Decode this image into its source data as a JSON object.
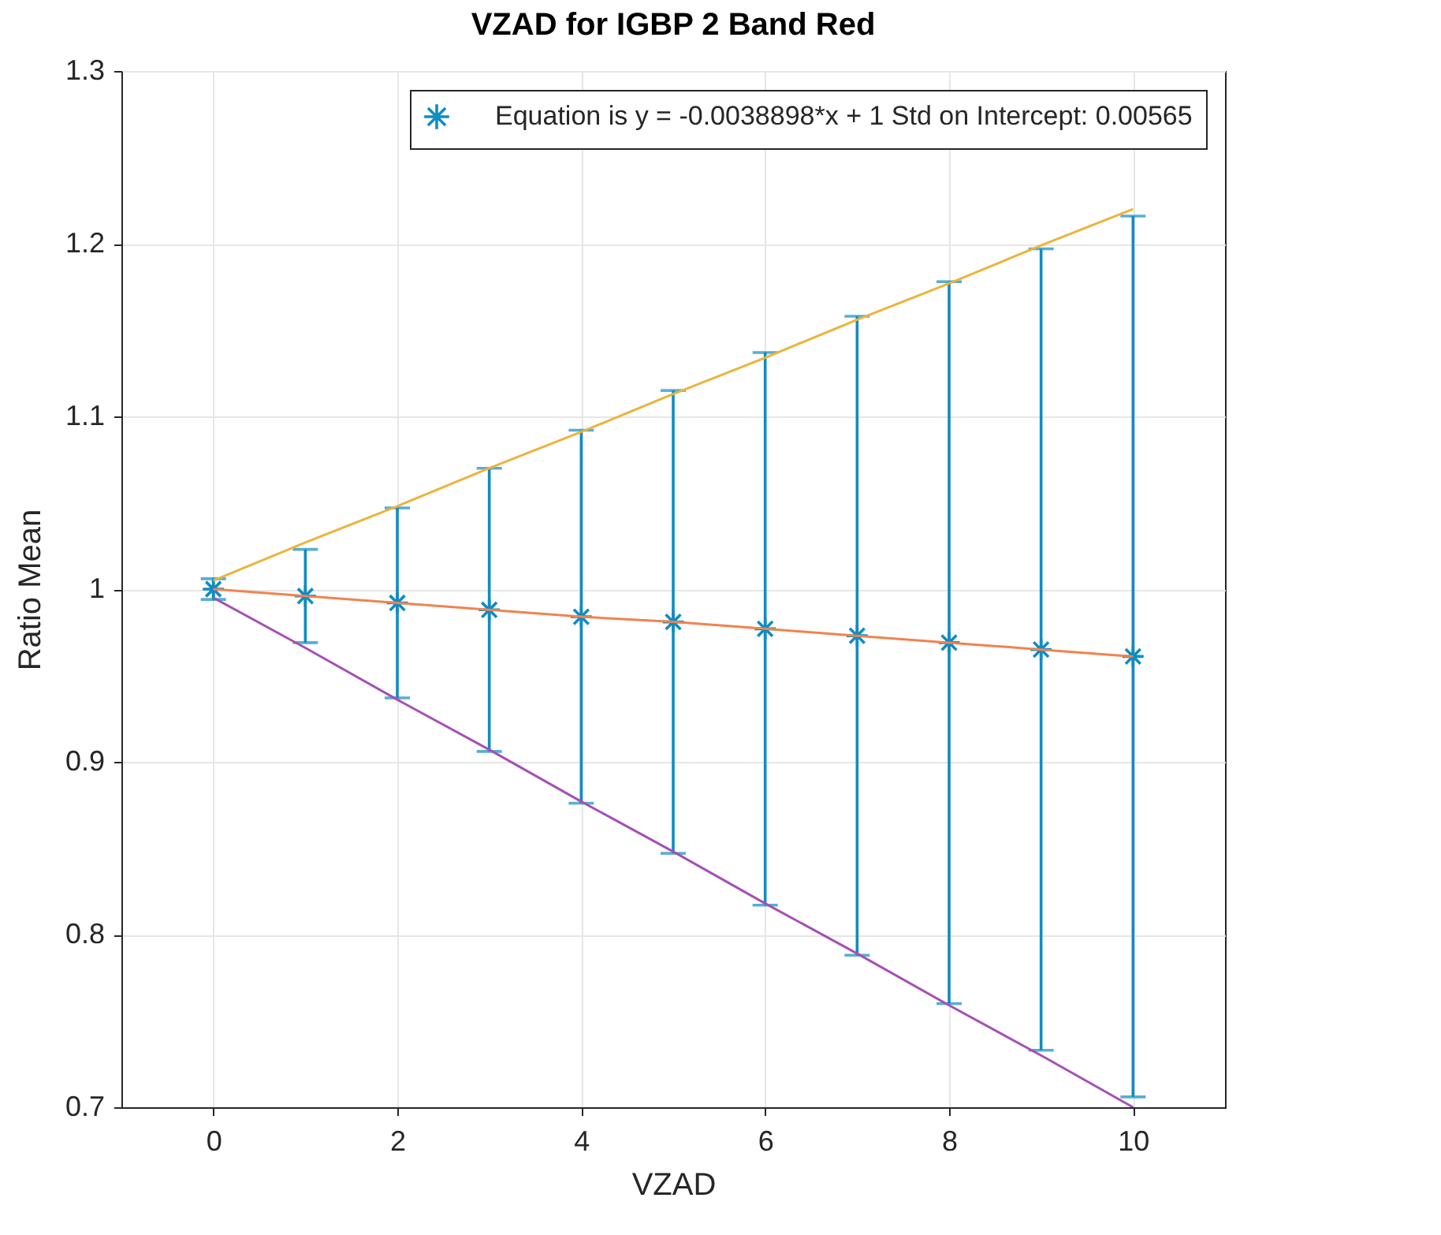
{
  "chart_data": {
    "type": "scatter",
    "title": "VZAD for IGBP 2 Band Red",
    "xlabel": "VZAD",
    "ylabel": "Ratio Mean",
    "x": [
      0,
      1,
      2,
      3,
      4,
      5,
      6,
      7,
      8,
      9,
      10
    ],
    "series": [
      {
        "name": "Equation is y = -0.0038898*x + 1 Std on Intercept: 0.00565",
        "color": "#0f8cc4",
        "marker": "cross",
        "values": [
          1.0,
          0.996,
          0.992,
          0.988,
          0.984,
          0.981,
          0.977,
          0.973,
          0.969,
          0.965,
          0.961
        ],
        "errors": [
          0.006,
          0.027,
          0.055,
          0.082,
          0.108,
          0.134,
          0.16,
          0.185,
          0.209,
          0.232,
          0.255
        ]
      },
      {
        "type": "line",
        "color": "#f0834f",
        "values": [
          1.0,
          0.996,
          0.992,
          0.988,
          0.984,
          0.981,
          0.977,
          0.973,
          0.969,
          0.965,
          0.961
        ]
      },
      {
        "type": "line",
        "color": "#edb33a",
        "values": [
          1.005,
          1.027,
          1.048,
          1.07,
          1.091,
          1.113,
          1.134,
          1.156,
          1.177,
          1.199,
          1.22
        ]
      },
      {
        "type": "line",
        "color": "#a550b5",
        "values": [
          0.995,
          0.966,
          0.936,
          0.907,
          0.877,
          0.848,
          0.818,
          0.789,
          0.759,
          0.73,
          0.7
        ]
      }
    ],
    "xlim": [
      -1,
      11
    ],
    "xticks": [
      0,
      2,
      4,
      6,
      8,
      10
    ],
    "ylim": [
      0.7,
      1.3
    ],
    "yticks": [
      0.7,
      0.8,
      0.9,
      1,
      1.1,
      1.2,
      1.3
    ],
    "grid": true,
    "legend": "top right",
    "line_style": "solid"
  }
}
